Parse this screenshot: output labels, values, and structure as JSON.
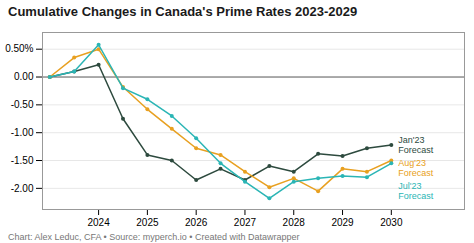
{
  "chart_data": {
    "type": "line",
    "title": "Cumulative Changes in Canada's Prime Rates 2023-2029",
    "caption": "Chart: Alex Leduc, CFA • Source: myperch.io • Created with Datawrapper",
    "x": [
      2023.0,
      2023.5,
      2024.0,
      2024.5,
      2025.0,
      2025.5,
      2026.0,
      2026.5,
      2027.0,
      2027.5,
      2028.0,
      2028.5,
      2029.0,
      2029.5,
      2030.0
    ],
    "series": [
      {
        "name": "Jan'23\nForecast",
        "color": "#2d4a3e",
        "values": [
          0.0,
          0.1,
          0.22,
          -0.75,
          -1.4,
          -1.5,
          -1.85,
          -1.65,
          -1.85,
          -1.6,
          -1.7,
          -1.38,
          -1.42,
          -1.28,
          -1.22
        ]
      },
      {
        "name": "Aug'23\nForecast",
        "color": "#e8a020",
        "values": [
          0.0,
          0.35,
          0.5,
          -0.18,
          -0.58,
          -0.93,
          -1.28,
          -1.4,
          -1.7,
          -1.98,
          -1.82,
          -2.05,
          -1.65,
          -1.7,
          -1.5
        ]
      },
      {
        "name": "Jul'23\nForecast",
        "color": "#2ab5b5",
        "values": [
          0.0,
          0.1,
          0.58,
          -0.2,
          -0.4,
          -0.7,
          -1.1,
          -1.55,
          -1.88,
          -2.18,
          -1.88,
          -1.82,
          -1.78,
          -1.8,
          -1.55
        ]
      }
    ],
    "xlim": [
      2022.85,
      2031.5
    ],
    "xticks": [
      2024,
      2025,
      2026,
      2027,
      2028,
      2029,
      2030
    ],
    "ylim": [
      -2.38,
      0.8
    ],
    "yticks": [
      {
        "value": 0.5,
        "label": "0.50%"
      },
      {
        "value": 0.0,
        "label": "0.00"
      },
      {
        "value": -0.5,
        "label": "-0.50"
      },
      {
        "value": -1.0,
        "label": "-1.00"
      },
      {
        "value": -1.5,
        "label": "-1.50"
      },
      {
        "value": -2.0,
        "label": "-2.00"
      }
    ],
    "grid": true,
    "marker": "circle",
    "legend": "right"
  }
}
